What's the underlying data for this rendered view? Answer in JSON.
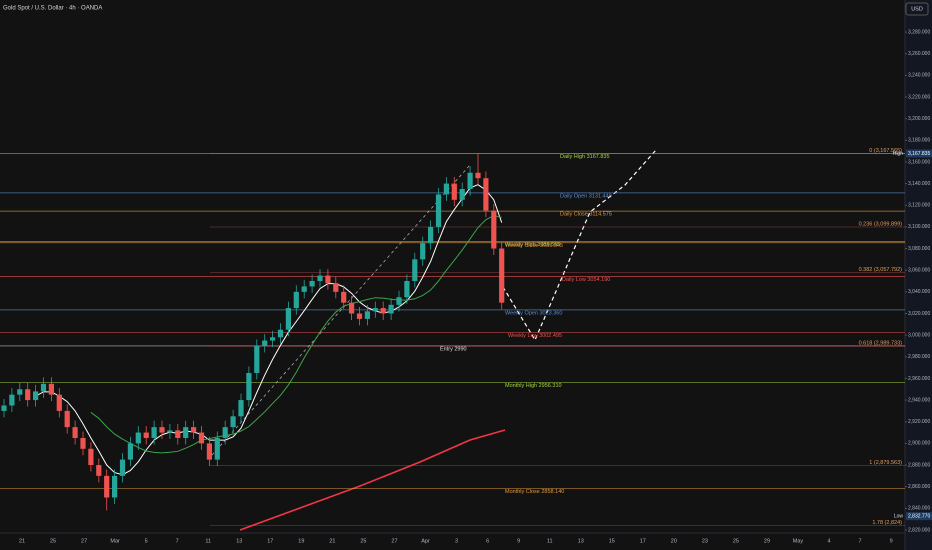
{
  "chart_data": {
    "type": "candlestick",
    "title": "Gold Spot / U.S. Dollar · 4h · OANDA",
    "currency": "USD",
    "up_color": "#26a69a",
    "down_color": "#ef5350",
    "grid": false,
    "ylim": [
      2801.5,
      3309.6
    ],
    "yticks": [
      {
        "value": 2820,
        "label": "2,820.000"
      },
      {
        "value": 2840,
        "label": "2,840.000"
      },
      {
        "value": 2860,
        "label": "2,860.000"
      },
      {
        "value": 2880,
        "label": "2,880.000"
      },
      {
        "value": 2900,
        "label": "2,900.000"
      },
      {
        "value": 2920,
        "label": "2,920.000"
      },
      {
        "value": 2940,
        "label": "2,940.000"
      },
      {
        "value": 2960,
        "label": "2,960.000"
      },
      {
        "value": 2980,
        "label": "2,980.000"
      },
      {
        "value": 3000,
        "label": "3,000.000"
      },
      {
        "value": 3020,
        "label": "3,020.000"
      },
      {
        "value": 3040,
        "label": "3,040.000"
      },
      {
        "value": 3060,
        "label": "3,060.000"
      },
      {
        "value": 3080,
        "label": "3,080.000"
      },
      {
        "value": 3100,
        "label": "3,100.000"
      },
      {
        "value": 3120,
        "label": "3,120.000"
      },
      {
        "value": 3140,
        "label": "3,140.000"
      },
      {
        "value": 3160,
        "label": "3,160.000"
      },
      {
        "value": 3180,
        "label": "3,180.000"
      },
      {
        "value": 3200,
        "label": "3,200.000"
      },
      {
        "value": 3220,
        "label": "3,220.000"
      },
      {
        "value": 3240,
        "label": "3,240.000"
      },
      {
        "value": 3260,
        "label": "3,260.000"
      },
      {
        "value": 3280,
        "label": "3,280.000"
      }
    ],
    "xlabels": [
      "21",
      "25",
      "27",
      "Mar",
      "5",
      "7",
      "11",
      "13",
      "17",
      "19",
      "21",
      "25",
      "27",
      "Apr",
      "3",
      "6",
      "9",
      "11",
      "13",
      "15",
      "17",
      "20",
      "23",
      "25",
      "29",
      "May",
      "4",
      "7",
      "9"
    ],
    "open": [
      2930,
      2935,
      2945,
      2950,
      2940,
      2948,
      2955,
      2945,
      2930,
      2915,
      2905,
      2895,
      2880,
      2870,
      2850,
      2870,
      2885,
      2900,
      2910,
      2905,
      2915,
      2910,
      2912,
      2905,
      2915,
      2910,
      2900,
      2885,
      2905,
      2915,
      2925,
      2940,
      2965,
      2990,
      2995,
      2998,
      3005,
      3025,
      3040,
      3045,
      3050,
      3055,
      3048,
      3040,
      3030,
      3020,
      3015,
      3022,
      3025,
      3020,
      3028,
      3035,
      3050,
      3070,
      3085,
      3100,
      3130,
      3140,
      3125,
      3135,
      3150,
      3145,
      3115,
      3080
    ],
    "high": [
      2941,
      2951,
      2956,
      2956,
      2954,
      2961,
      2961,
      2951,
      2936,
      2921,
      2911,
      2901,
      2886,
      2876,
      2876,
      2891,
      2906,
      2916,
      2916,
      2921,
      2921,
      2918,
      2918,
      2921,
      2921,
      2916,
      2906,
      2911,
      2921,
      2931,
      2946,
      2971,
      2996,
      3001,
      3004,
      3011,
      3031,
      3046,
      3051,
      3056,
      3061,
      3061,
      3054,
      3046,
      3036,
      3026,
      3028,
      3031,
      3031,
      3034,
      3041,
      3056,
      3076,
      3091,
      3106,
      3136,
      3146,
      3146,
      3141,
      3156,
      3167.835,
      3151,
      3121,
      3086
    ],
    "low": [
      2924,
      2929,
      2939,
      2934,
      2934,
      2942,
      2939,
      2924,
      2909,
      2899,
      2889,
      2874,
      2864,
      2838,
      2844,
      2864,
      2879,
      2894,
      2899,
      2899,
      2904,
      2904,
      2899,
      2899,
      2904,
      2894,
      2879,
      2879,
      2899,
      2909,
      2919,
      2934,
      2959,
      2984,
      2989,
      2992,
      2999,
      3019,
      3034,
      3039,
      3044,
      3042,
      3034,
      3024,
      3014,
      3009,
      3009,
      3016,
      3014,
      3014,
      3022,
      3029,
      3044,
      3064,
      3079,
      3094,
      3124,
      3119,
      3119,
      3129,
      3139,
      3109,
      3074,
      3024
    ],
    "close": [
      2935,
      2945,
      2950,
      2940,
      2948,
      2955,
      2945,
      2930,
      2915,
      2905,
      2895,
      2880,
      2870,
      2850,
      2870,
      2885,
      2900,
      2910,
      2905,
      2915,
      2910,
      2912,
      2905,
      2915,
      2910,
      2900,
      2885,
      2905,
      2915,
      2925,
      2940,
      2965,
      2990,
      2995,
      2998,
      3005,
      3025,
      3040,
      3045,
      3050,
      3055,
      3048,
      3040,
      3030,
      3020,
      3015,
      3022,
      3025,
      3020,
      3028,
      3035,
      3050,
      3070,
      3085,
      3100,
      3130,
      3140,
      3125,
      3135,
      3150,
      3145,
      3115,
      3080,
      3030
    ],
    "levels": [
      {
        "label": "Daily High 3167.835",
        "value": 3167.835,
        "color": "#a5d63f"
      },
      {
        "label": "Daily Open 3131.440",
        "value": 3131.44,
        "color": "#5b8fd6"
      },
      {
        "label": "Daily Close 3114.575",
        "value": 3114.575,
        "color": "#e39a3c"
      },
      {
        "label": "Weekly High 3086.565",
        "value": 3086.565,
        "color": "#a5d63f"
      },
      {
        "label": "Weekly Close 3085.345",
        "value": 3085.345,
        "color": "#e39a3c"
      },
      {
        "label": "Daily Low 3054.190",
        "value": 3054.19,
        "color": "#ef5350"
      },
      {
        "label": "Weekly Open 3023.360",
        "value": 3023.36,
        "color": "#5b8fd6"
      },
      {
        "label": "Weekly Low 3002.495",
        "value": 3002.495,
        "color": "#ef5350"
      },
      {
        "label": "Entry 2990",
        "value": 2990,
        "color": "#e0e0e0"
      },
      {
        "label": "Monthly High 2956.310",
        "value": 2956.31,
        "color": "#a5d63f"
      },
      {
        "label": "Monthly Close 2858.140",
        "value": 2858.14,
        "color": "#e39a3c"
      }
    ],
    "fib": [
      {
        "label": "0 (3,167.565)",
        "value": 3167.565
      },
      {
        "label": "0.236 (3,099.899)",
        "value": 3099.899
      },
      {
        "label": "0.382 (3,057.792)",
        "value": 3057.792
      },
      {
        "label": "0.618 (2,989.733)",
        "value": 2989.733
      },
      {
        "label": "1 (2,879.563)",
        "value": 2879.563
      },
      {
        "label": "1.78 (2,824)",
        "value": 2824
      }
    ],
    "high_marker": {
      "name": "High",
      "value": 3167.835,
      "label": "3,167.835"
    },
    "low_marker": {
      "name": "Low",
      "value": 2832.77,
      "label": "2,832.770"
    }
  }
}
